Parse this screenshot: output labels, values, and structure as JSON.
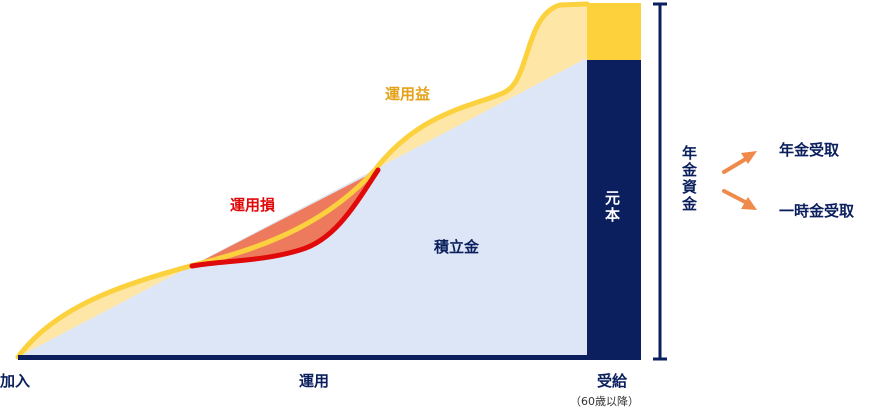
{
  "labels": {
    "unyoueki": "運用益",
    "unyouson": "運用損",
    "tsumitatekin": "積立金",
    "ganpon": "元本",
    "nenkin_shikin": "年金資金",
    "nenkin_uketori": "年金受取",
    "ichijikin_uketori": "一時金受取"
  },
  "axis": {
    "start": "加入",
    "middle": "運用",
    "end": "受給",
    "end_note": "（60歳以降）"
  },
  "colors": {
    "principal_area": "#dde6f6",
    "principal_block": "#0b1f5e",
    "gain_fill": "#fde6a6",
    "gain_line": "#fcd13e",
    "gain_block": "#fdd13b",
    "loss_fill": "#ee7a5d",
    "loss_line": "#e00a0a",
    "gain_label": "#e3a219",
    "loss_label": "#e00a0a",
    "arrow": "#f08a4b",
    "axis": "#0b1f5e"
  }
}
